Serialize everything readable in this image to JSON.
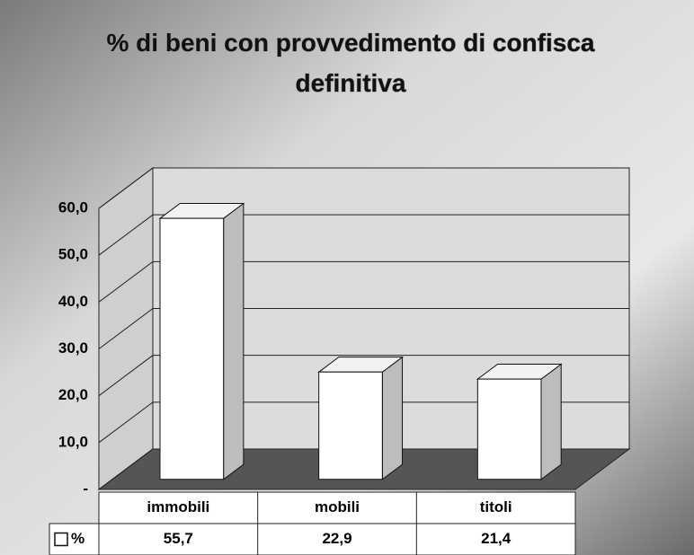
{
  "chart_data": {
    "type": "bar3d",
    "title": "% di beni con provvedimento di confisca definitiva",
    "categories": [
      "immobili",
      "mobili",
      "titoli"
    ],
    "series": [
      {
        "name": "%",
        "color": "#ffffff",
        "values": [
          55.7,
          22.9,
          21.4
        ],
        "value_labels": [
          "55,7",
          "22,9",
          "21,4"
        ]
      }
    ],
    "ylim": [
      0,
      60
    ],
    "yticks": [
      {
        "value": 0,
        "label": "-"
      },
      {
        "value": 10,
        "label": "10,0"
      },
      {
        "value": 20,
        "label": "20,0"
      },
      {
        "value": 30,
        "label": "30,0"
      },
      {
        "value": 40,
        "label": "40,0"
      },
      {
        "value": 50,
        "label": "50,0"
      },
      {
        "value": 60,
        "label": "60,0"
      }
    ],
    "grid": true,
    "legend": "table"
  }
}
